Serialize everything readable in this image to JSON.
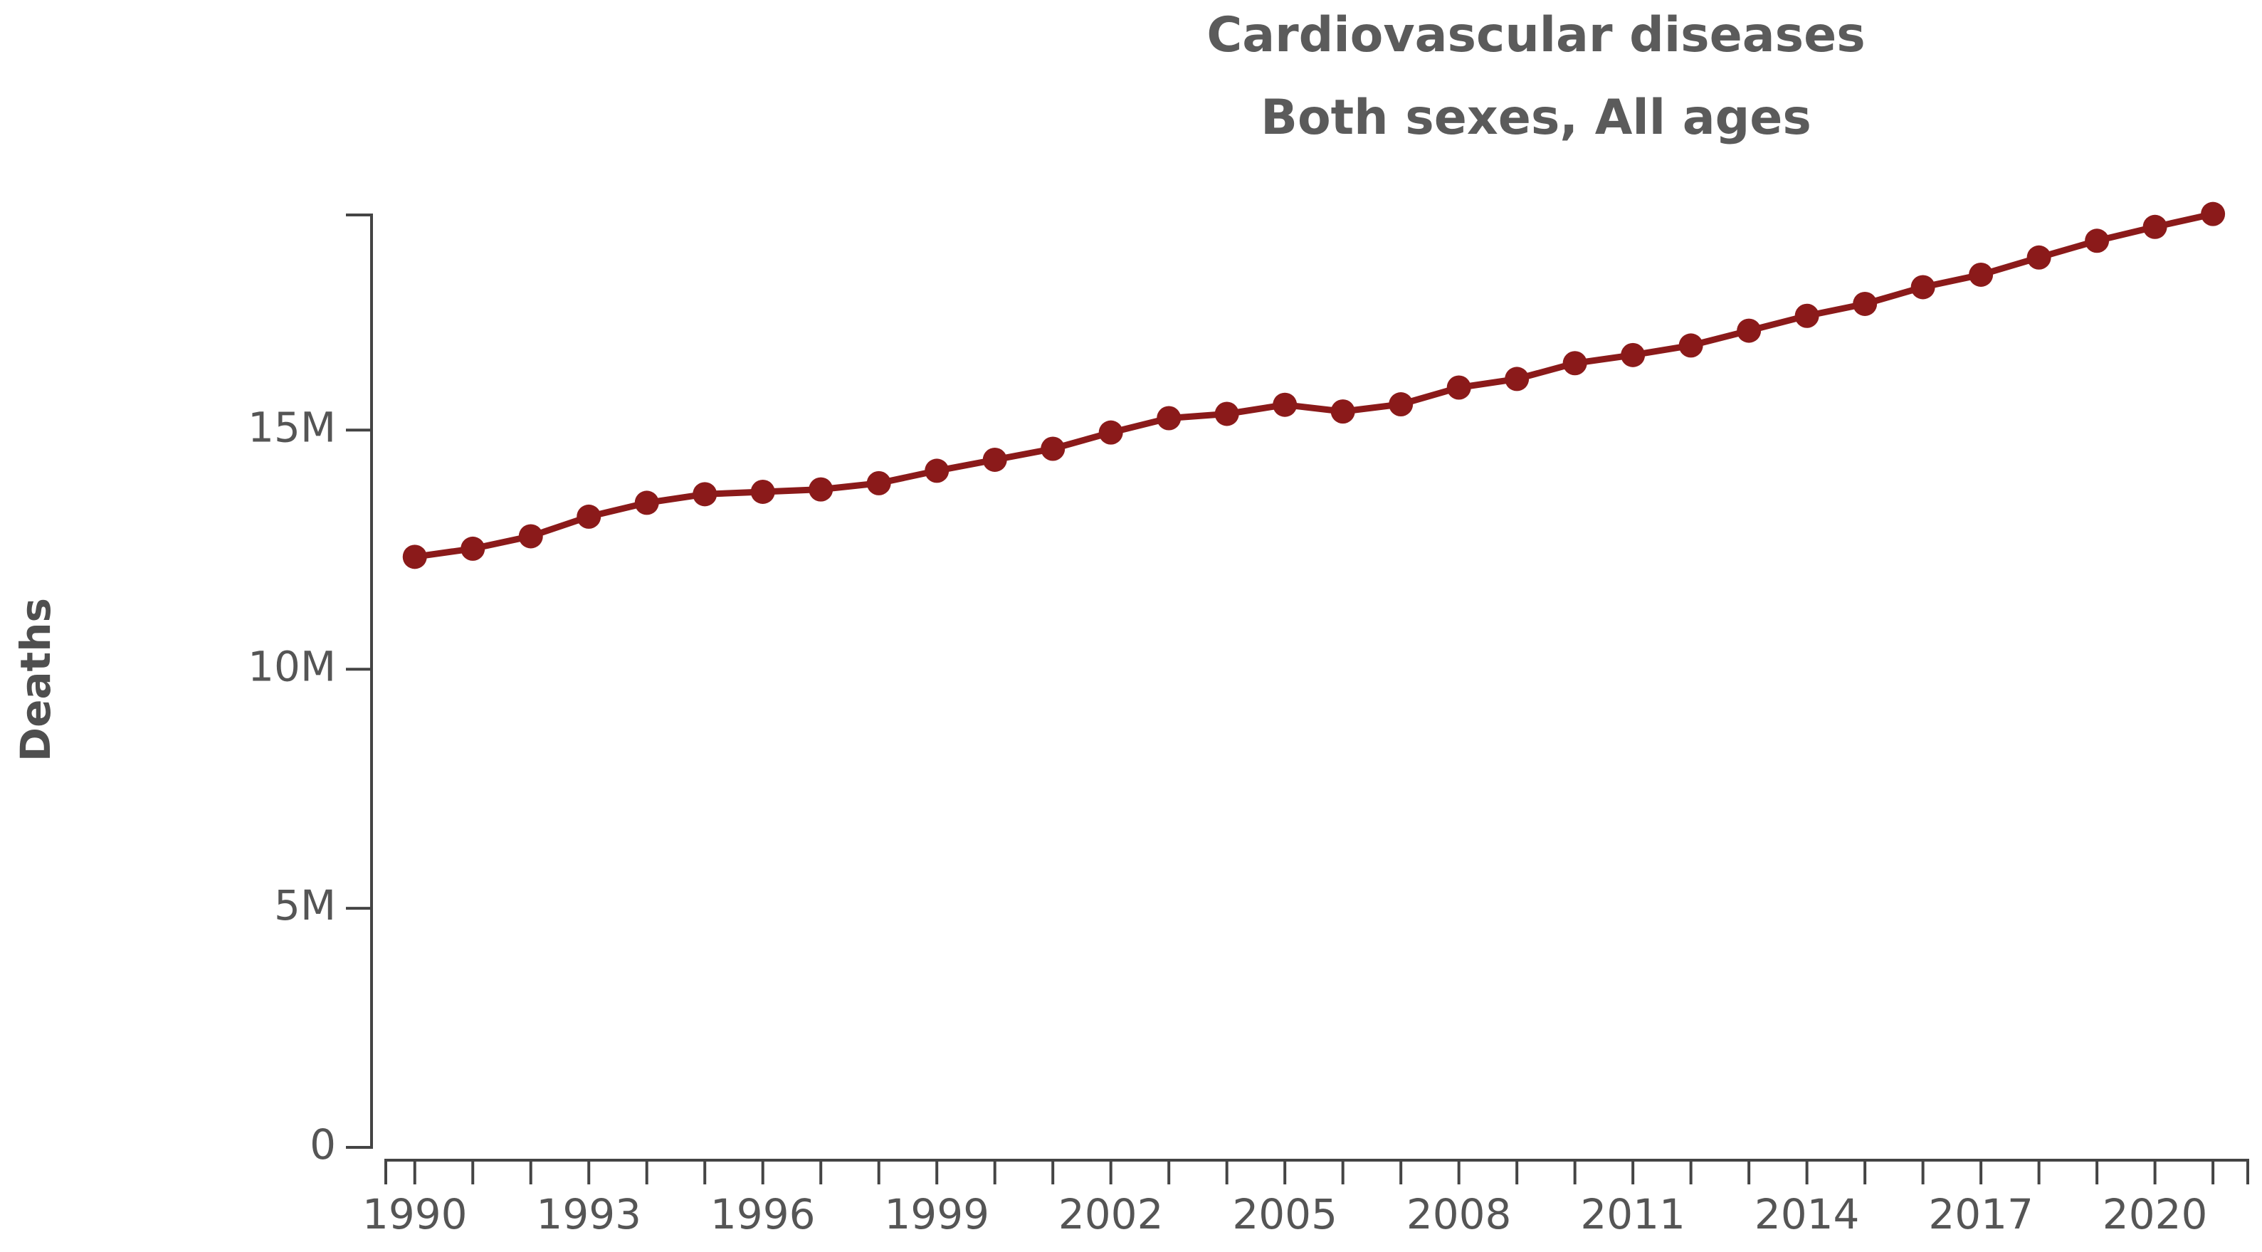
{
  "chart_data": {
    "type": "line",
    "title": "Cardiovascular diseases",
    "subtitle": "Both sexes, All ages",
    "xlabel": "",
    "ylabel": "Deaths",
    "ylim": [
      0,
      19500000
    ],
    "xlim": [
      1989.5,
      2021.6
    ],
    "grid": false,
    "legend": "none",
    "color": "#8b1a1a",
    "y_ticks": [
      {
        "value": 0,
        "label": "0"
      },
      {
        "value": 5000000,
        "label": "5M"
      },
      {
        "value": 10000000,
        "label": "10M"
      },
      {
        "value": 15000000,
        "label": "15M"
      }
    ],
    "x_tick_labels": [
      "1990",
      "1993",
      "1996",
      "1999",
      "2002",
      "2005",
      "2008",
      "2011",
      "2014",
      "2017",
      "2020"
    ],
    "x": [
      1990,
      1991,
      1992,
      1993,
      1994,
      1995,
      1996,
      1997,
      1998,
      1999,
      2000,
      2001,
      2002,
      2003,
      2004,
      2005,
      2006,
      2007,
      2008,
      2009,
      2010,
      2011,
      2012,
      2013,
      2014,
      2015,
      2016,
      2017,
      2018,
      2019,
      2020,
      2021
    ],
    "series": [
      {
        "name": "Cardiovascular diseases",
        "values": [
          12350000,
          12520000,
          12780000,
          13190000,
          13480000,
          13660000,
          13710000,
          13760000,
          13890000,
          14150000,
          14380000,
          14610000,
          14950000,
          15250000,
          15340000,
          15530000,
          15390000,
          15540000,
          15890000,
          16070000,
          16400000,
          16570000,
          16770000,
          17080000,
          17390000,
          17640000,
          17990000,
          18250000,
          18610000,
          18960000,
          19250000,
          19520000
        ]
      }
    ]
  }
}
